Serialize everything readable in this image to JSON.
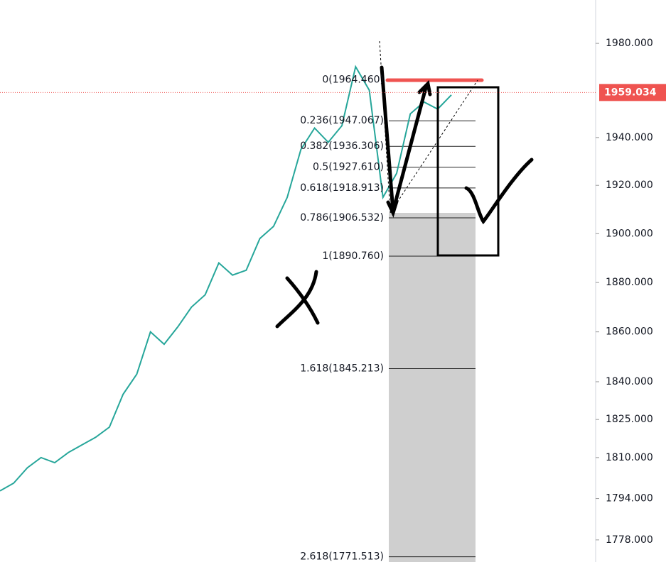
{
  "chart_data": {
    "type": "line",
    "log_scale": true,
    "ylim": [
      1769.5,
      1998.7
    ],
    "yticks": [
      {
        "value": 1980,
        "label": "1980.000"
      },
      {
        "value": 1940,
        "label": "1940.000"
      },
      {
        "value": 1920,
        "label": "1920.000"
      },
      {
        "value": 1900,
        "label": "1900.000"
      },
      {
        "value": 1880,
        "label": "1880.000"
      },
      {
        "value": 1860,
        "label": "1860.000"
      },
      {
        "value": 1840,
        "label": "1840.000"
      },
      {
        "value": 1825,
        "label": "1825.000"
      },
      {
        "value": 1810,
        "label": "1810.000"
      },
      {
        "value": 1794,
        "label": "1794.000"
      },
      {
        "value": 1778,
        "label": "1778.000"
      }
    ],
    "current_price": {
      "value": 1959.034,
      "label": "1959.034",
      "color": "#ef5350"
    },
    "fib_levels": [
      {
        "value": 1964.46,
        "label": "0(1964.460)"
      },
      {
        "value": 1947.067,
        "label": "0.236(1947.067)"
      },
      {
        "value": 1936.306,
        "label": "0.382(1936.306)"
      },
      {
        "value": 1927.61,
        "label": "0.5(1927.610)"
      },
      {
        "value": 1918.913,
        "label": "0.618(1918.913)"
      },
      {
        "value": 1906.532,
        "label": "0.786(1906.532)"
      },
      {
        "value": 1890.76,
        "label": "1(1890.760)"
      },
      {
        "value": 1845.213,
        "label": "1.618(1845.213)"
      },
      {
        "value": 1771.513,
        "label": "2.618(1771.513)"
      }
    ],
    "series": [
      {
        "color": "#26a69a",
        "values": [
          1797,
          1800,
          1806,
          1810,
          1808,
          1812,
          1815,
          1818,
          1822,
          1835,
          1843,
          1860,
          1855,
          1862,
          1870,
          1875,
          1888,
          1883,
          1885,
          1898,
          1903,
          1915,
          1935,
          1944,
          1938,
          1945,
          1970,
          1960,
          1915,
          1925,
          1950,
          1955,
          1952,
          1958
        ]
      }
    ]
  }
}
